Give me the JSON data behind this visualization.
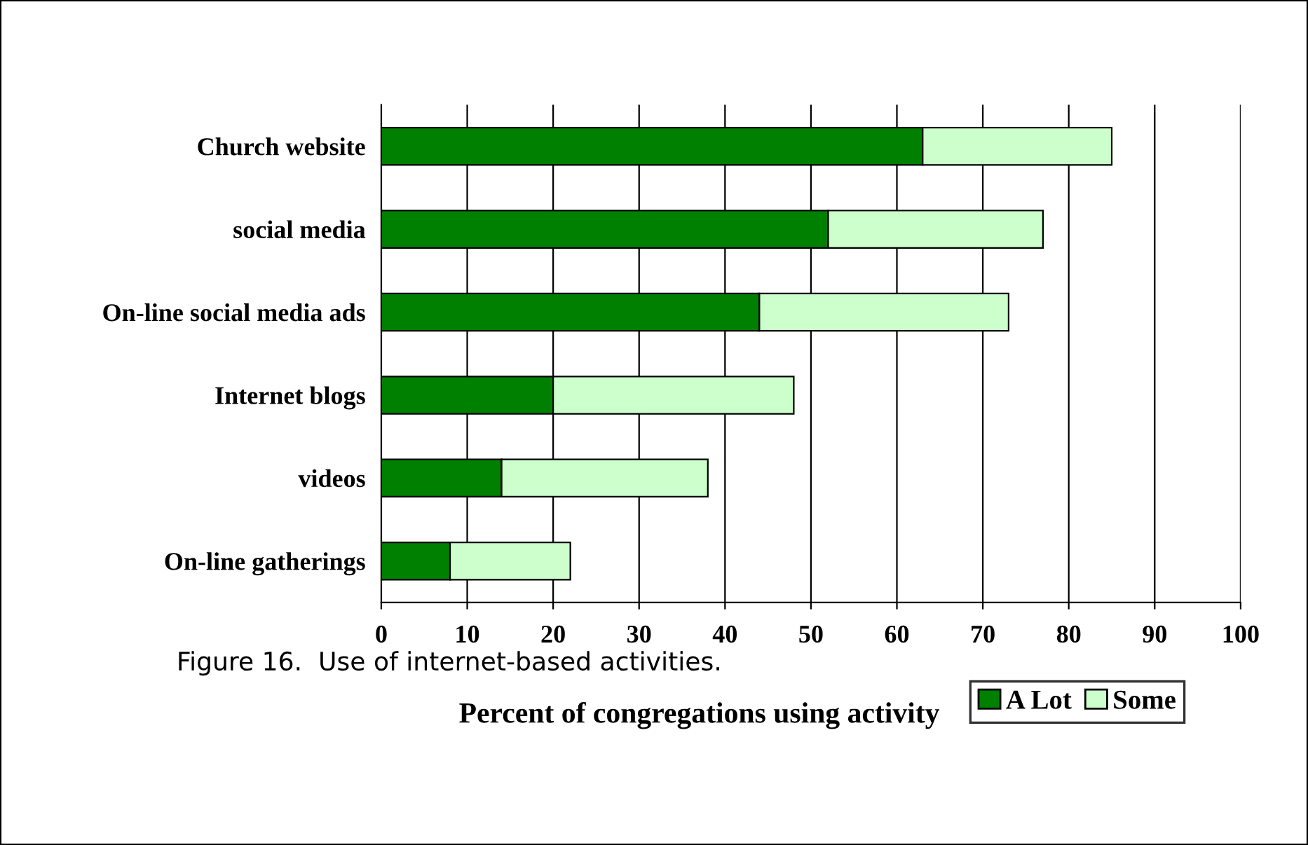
{
  "chart_data": {
    "type": "bar",
    "orientation": "horizontal",
    "stacked": true,
    "categories": [
      "Church website",
      "social media",
      "On-line social media ads",
      "Internet blogs",
      "videos",
      "On-line gatherings"
    ],
    "series": [
      {
        "name": "A Lot",
        "color": "#008000",
        "values": [
          63,
          52,
          44,
          20,
          14,
          8
        ]
      },
      {
        "name": "Some",
        "color": "#ccffcc",
        "values": [
          22,
          25,
          29,
          28,
          24,
          14
        ]
      }
    ],
    "xlim": [
      0,
      100
    ],
    "xticks": [
      0,
      10,
      20,
      30,
      40,
      50,
      60,
      70,
      80,
      90,
      100
    ],
    "xlabel": "Percent of congregations using activity",
    "grid": "x",
    "legend": "bottom",
    "annotations": [
      "Figure 16.  Use of internet-based activities."
    ]
  }
}
